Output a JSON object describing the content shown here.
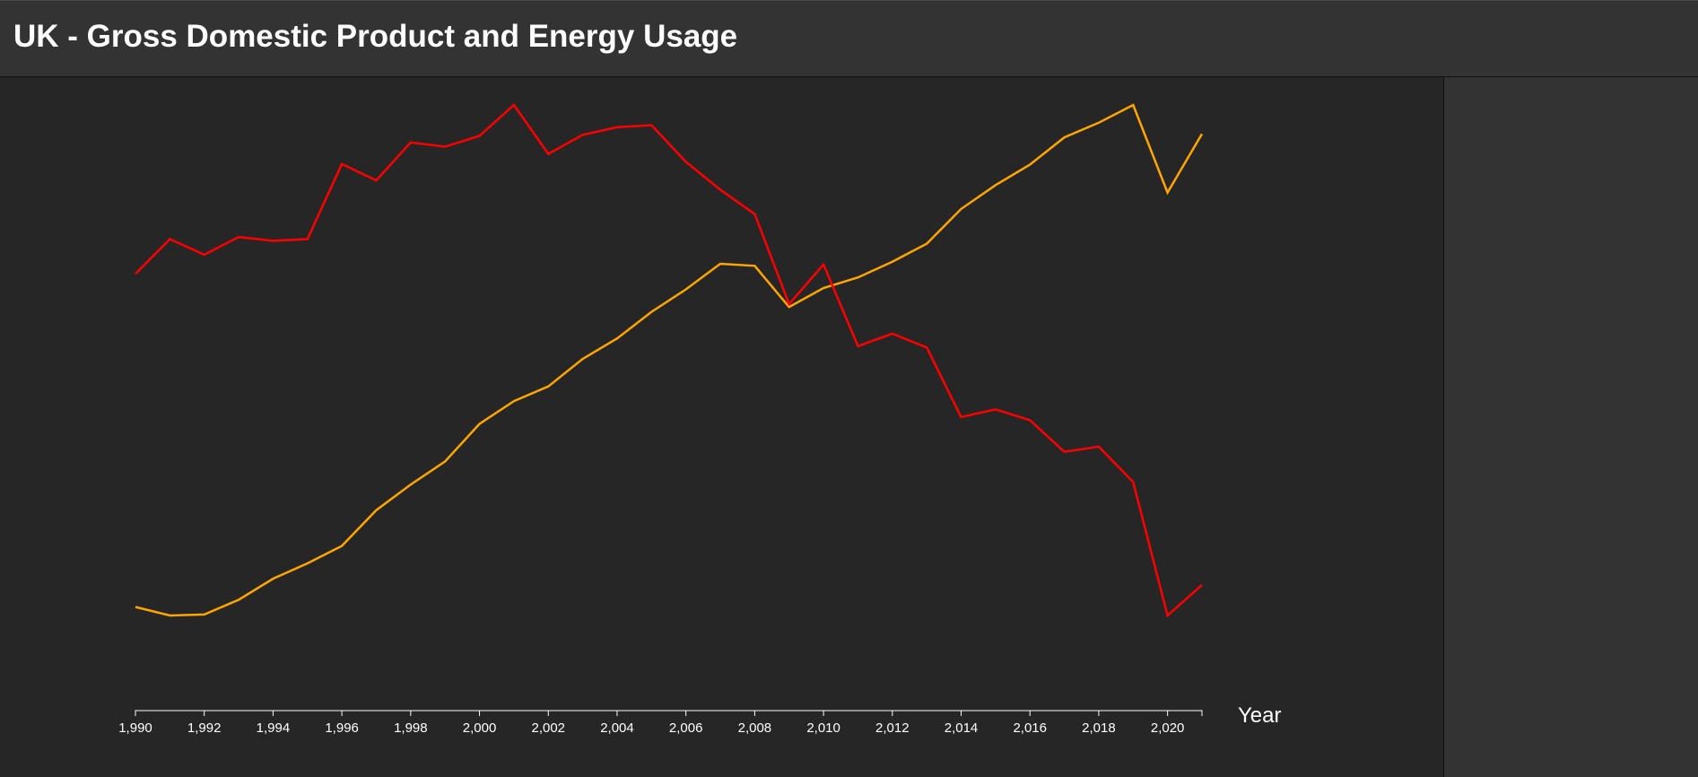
{
  "header": {
    "title": "UK - Gross Domestic Product and Energy Usage"
  },
  "chart_data": {
    "type": "line",
    "title": "UK - Gross Domestic Product and Energy Usage",
    "xlabel": "Year",
    "ylabel": "",
    "grid": false,
    "x": [
      1990,
      1991,
      1992,
      1993,
      1994,
      1995,
      1996,
      1997,
      1998,
      1999,
      2000,
      2001,
      2002,
      2003,
      2004,
      2005,
      2006,
      2007,
      2008,
      2009,
      2010,
      2011,
      2012,
      2013,
      2014,
      2015,
      2016,
      2017,
      2018,
      2019,
      2020,
      2021
    ],
    "xlim": [
      1990,
      2021
    ],
    "x_ticks": [
      1990,
      1992,
      1994,
      1996,
      1998,
      2000,
      2002,
      2004,
      2006,
      2008,
      2010,
      2012,
      2014,
      2016,
      2018,
      2020
    ],
    "x_tick_labels": [
      "1,990",
      "1,992",
      "1,994",
      "1,996",
      "1,998",
      "2,000",
      "2,002",
      "2,004",
      "2,006",
      "2,008",
      "2,010",
      "2,012",
      "2,014",
      "2,016",
      "2,018",
      "2,020"
    ],
    "series": [
      {
        "color": "#ffa500",
        "values": [
          0.025,
          0.0,
          0.003,
          0.046,
          0.108,
          0.153,
          0.204,
          0.309,
          0.384,
          0.452,
          0.562,
          0.629,
          0.672,
          0.753,
          0.813,
          0.891,
          0.957,
          1.032,
          1.026,
          0.905,
          0.961,
          0.992,
          1.038,
          1.091,
          1.193,
          1.263,
          1.323,
          1.403,
          1.446,
          1.498,
          1.241,
          1.413
        ],
        "y_display_range": [
          0.0,
          1.498
        ]
      },
      {
        "color": "#ff0000",
        "values": [
          0.628,
          0.728,
          0.683,
          0.734,
          0.723,
          0.728,
          0.944,
          0.897,
          1.006,
          0.994,
          1.025,
          1.114,
          0.973,
          1.028,
          1.05,
          1.056,
          0.95,
          0.87,
          0.8,
          0.541,
          0.655,
          0.42,
          0.456,
          0.416,
          0.216,
          0.238,
          0.207,
          0.116,
          0.131,
          0.029,
          -0.355,
          -0.267
        ],
        "y_display_range": [
          -0.355,
          1.114
        ]
      }
    ]
  }
}
